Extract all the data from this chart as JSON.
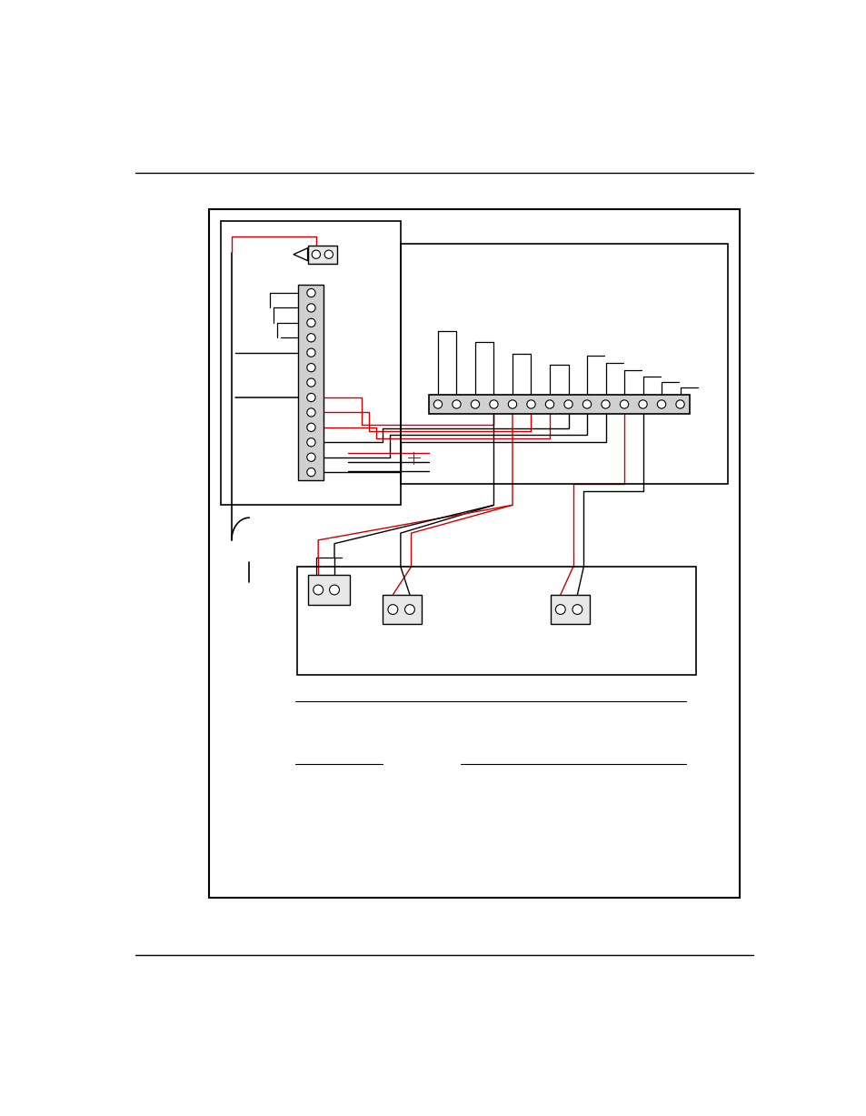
{
  "bg": "#ffffff",
  "bk": "#000000",
  "rd": "#cc0000",
  "gray_dark": "#555555",
  "gray_light": "#dddddd",
  "gray_med": "#aaaaaa"
}
